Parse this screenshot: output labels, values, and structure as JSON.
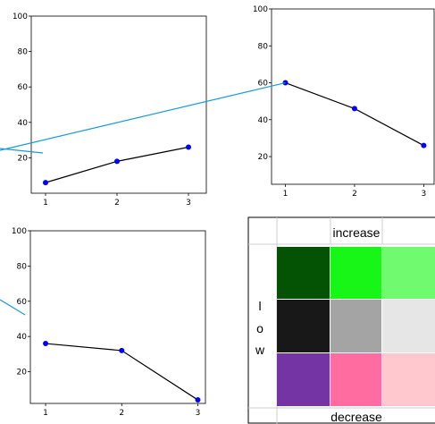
{
  "chart_data": [
    {
      "type": "line",
      "x": [
        1,
        2,
        3
      ],
      "y": [
        6,
        18,
        26
      ],
      "xlim": [
        0.8,
        3.25
      ],
      "ylim": [
        0,
        100
      ],
      "x_ticks": [
        "1",
        "2",
        "3"
      ],
      "y_ticks": [
        "20",
        "40",
        "60",
        "80",
        "100"
      ],
      "marker_color": "#0000ff",
      "line_color": "#000000",
      "grid": false
    },
    {
      "type": "line",
      "x": [
        1,
        2,
        3
      ],
      "y": [
        60,
        46,
        26
      ],
      "xlim": [
        0.8,
        3.15
      ],
      "ylim": [
        5,
        100
      ],
      "x_ticks": [
        "1",
        "2",
        "3"
      ],
      "y_ticks": [
        "20",
        "40",
        "60",
        "80",
        "100"
      ],
      "marker_color": "#0000ff",
      "line_color": "#000000",
      "grid": false
    },
    {
      "type": "line",
      "x": [
        1,
        2,
        3
      ],
      "y": [
        36,
        32,
        4
      ],
      "xlim": [
        0.8,
        3.1
      ],
      "ylim": [
        2,
        100
      ],
      "x_ticks": [
        "1",
        "2",
        "3"
      ],
      "y_ticks": [
        "20",
        "40",
        "60",
        "80",
        "100"
      ],
      "marker_color": "#0000ff",
      "line_color": "#000000",
      "grid": false
    },
    {
      "type": "heatmap",
      "column_header": "increase",
      "row_letters": [
        "l",
        "o",
        "w"
      ],
      "bottom_label": "decrease",
      "cells": [
        [
          "#045204",
          "#17f617",
          "#6ffa6f"
        ],
        [
          "#181818",
          "#a4a4a4",
          "#e6e6e6"
        ],
        [
          "#7434a4",
          "#fe6ca0",
          "#ffc8ce"
        ]
      ]
    }
  ],
  "connector_color": "#1a9bd7"
}
